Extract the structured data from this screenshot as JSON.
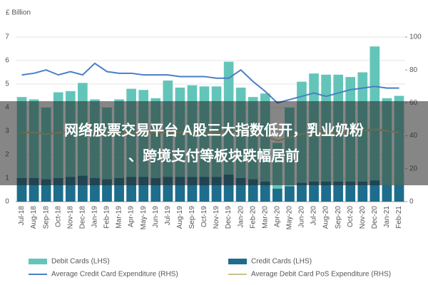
{
  "chart_data": {
    "type": "bar-line",
    "ylabel": "£ Billion",
    "categories": [
      "Jul-18",
      "Aug-18",
      "Sep-18",
      "Oct-18",
      "Nov-18",
      "Dec-18",
      "Jan-19",
      "Feb-19",
      "Mar-19",
      "Apr-19",
      "May-19",
      "Jun-19",
      "Jul-19",
      "Aug-19",
      "Sep-19",
      "Oct-19",
      "Nov-19",
      "Dec-19",
      "Jan-20",
      "Feb-20",
      "Mar-20",
      "Apr-20",
      "May-20",
      "Jun-20",
      "Jul-20",
      "Aug-20",
      "Sep-20",
      "Oct-20",
      "Nov-20",
      "Dec-20",
      "Jan-21",
      "Feb-21"
    ],
    "series": [
      {
        "name": "Debit Cards (LHS)",
        "color": "#63c5b9",
        "kind": "bar",
        "values": [
          4.45,
          4.35,
          4.0,
          4.65,
          4.7,
          5.05,
          4.35,
          4.0,
          4.35,
          4.8,
          4.75,
          4.4,
          5.15,
          4.85,
          4.95,
          4.9,
          4.9,
          5.95,
          4.85,
          4.45,
          4.6,
          2.5,
          4.0,
          5.1,
          5.45,
          5.4,
          5.4,
          5.3,
          5.5,
          6.6,
          4.4,
          4.5
        ]
      },
      {
        "name": "Credit Cards (LHS)",
        "color": "#1e6d8c",
        "kind": "bar",
        "values": [
          1.0,
          1.0,
          0.95,
          1.0,
          1.05,
          1.1,
          1.0,
          0.95,
          1.0,
          1.05,
          1.05,
          1.0,
          1.05,
          1.05,
          1.05,
          1.05,
          1.05,
          1.15,
          1.0,
          0.95,
          0.85,
          0.55,
          0.65,
          0.8,
          0.85,
          0.85,
          0.85,
          0.85,
          0.85,
          0.9,
          0.7,
          0.7
        ]
      },
      {
        "name": "Average Credit Card Expenditure (RHS)",
        "color": "#4a7fc4",
        "kind": "line",
        "axis": "y2",
        "values": [
          77,
          78,
          80,
          77,
          79,
          77,
          84,
          79,
          78,
          78,
          77,
          77,
          77,
          76,
          76,
          76,
          75,
          75,
          80,
          73,
          67,
          60,
          62,
          64,
          66,
          64,
          66,
          68,
          69,
          70,
          69,
          69
        ]
      },
      {
        "name": "Average Debit Card PoS Expenditure (RHS)",
        "color": "#c9c38c",
        "kind": "line",
        "axis": "y2",
        "values": [
          42,
          42,
          41,
          42,
          42,
          43,
          42,
          41,
          42,
          42,
          42,
          42,
          42,
          42,
          42,
          42,
          42,
          43,
          42,
          41,
          40,
          37,
          39,
          41,
          42,
          42,
          42,
          42,
          43,
          44,
          43,
          42
        ]
      }
    ],
    "ylim": [
      0,
      7
    ],
    "yticks": [
      0,
      1,
      2,
      3,
      4,
      5,
      6,
      7
    ],
    "y2lim": [
      0,
      100
    ],
    "y2ticks": [
      0,
      20,
      40,
      60,
      80,
      100
    ],
    "grid": true
  },
  "overlay": {
    "lines": [
      "网络股票交易平台 A股三大指数低开，乳业奶粉",
      "、跨境支付等板块跌幅居前"
    ]
  }
}
